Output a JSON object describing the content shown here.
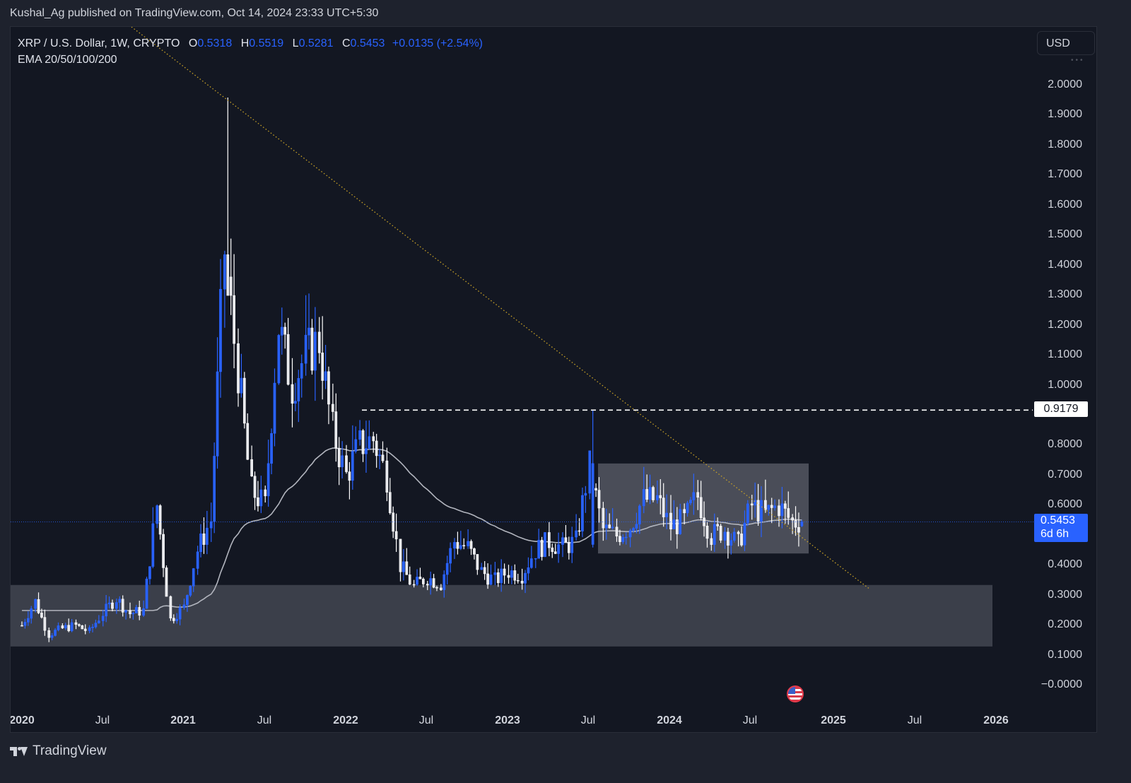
{
  "header": {
    "publisher_line": "Kushal_Ag published on TradingView.com, Oct 14, 2024 23:33 UTC+5:30"
  },
  "legend": {
    "symbol": "XRP / U.S. Dollar, 1W, CRYPTO",
    "open_label": "O",
    "open": "0.5318",
    "high_label": "H",
    "high": "0.5519",
    "low_label": "L",
    "low": "0.5281",
    "close_label": "C",
    "close": "0.5453",
    "change": "+0.0135 (+2.54%)",
    "indicator": "EMA 20/50/100/200"
  },
  "toolbar": {
    "currency": "USD"
  },
  "price_axis": {
    "ticks": [
      "2.0000",
      "1.9000",
      "1.8000",
      "1.7000",
      "1.6000",
      "1.5000",
      "1.4000",
      "1.3000",
      "1.2000",
      "1.1000",
      "1.0000",
      "0.8000",
      "0.7000",
      "0.6000",
      "0.4000",
      "0.3000",
      "0.2000",
      "0.1000",
      "−0.0000"
    ],
    "level_tag": "0.9179",
    "last_price": "0.5453",
    "countdown": "6d 6h"
  },
  "time_axis": {
    "labels": [
      {
        "text": "2020",
        "major": true
      },
      {
        "text": "Jul",
        "major": false
      },
      {
        "text": "2021",
        "major": true
      },
      {
        "text": "Jul",
        "major": false
      },
      {
        "text": "2022",
        "major": true
      },
      {
        "text": "Jul",
        "major": false
      },
      {
        "text": "2023",
        "major": true
      },
      {
        "text": "Jul",
        "major": false
      },
      {
        "text": "2024",
        "major": true
      },
      {
        "text": "Jul",
        "major": false
      },
      {
        "text": "2025",
        "major": true
      },
      {
        "text": "Jul",
        "major": false
      },
      {
        "text": "2026",
        "major": true
      }
    ]
  },
  "footer": {
    "brand": "TradingView"
  },
  "colors": {
    "background": "#131722",
    "up_candle": "#2962ff",
    "down_candle": "#ffffff",
    "ema": "#b2b5be",
    "trendline": "#c9a227",
    "zone": "#4a4d57",
    "last_price": "#2962ff"
  },
  "chart_data": {
    "type": "candlestick",
    "title": "XRP / U.S. Dollar, 1W, CRYPTO",
    "xlabel": "",
    "ylabel": "USD",
    "ylim": [
      0,
      2.05
    ],
    "x_range": [
      "2020-01",
      "2026-03"
    ],
    "grid": false,
    "legend_position": "top-left",
    "indicators": [
      "EMA 20/50/100/200"
    ],
    "annotations": [
      {
        "type": "horizontal_dashed_line",
        "price": 0.9179,
        "from": "2022-03",
        "to": "axis"
      },
      {
        "type": "rectangle",
        "label": "range box",
        "price_low": 0.44,
        "price_high": 0.74,
        "from": "2023-07",
        "to": "2024-11"
      },
      {
        "type": "rectangle",
        "label": "support zone",
        "price_low": 0.13,
        "price_high": 0.335,
        "from": "2020-01",
        "to": "2026-01"
      },
      {
        "type": "dotted_trendline",
        "from": {
          "date": "2020-11",
          "price": 2.2
        },
        "to": {
          "date": "2025-03",
          "price": 0.32
        }
      },
      {
        "type": "event_flag",
        "label": "US event",
        "date": "2024-11"
      }
    ],
    "last": {
      "open": 0.5318,
      "high": 0.5519,
      "low": 0.5281,
      "close": 0.5453,
      "change": 0.0135,
      "change_pct": 2.54
    },
    "weekly_close_approx": [
      [
        "2020-01",
        0.2
      ],
      [
        "2020-02",
        0.28
      ],
      [
        "2020-03",
        0.17
      ],
      [
        "2020-04",
        0.19
      ],
      [
        "2020-05",
        0.2
      ],
      [
        "2020-06",
        0.18
      ],
      [
        "2020-07",
        0.24
      ],
      [
        "2020-08",
        0.29
      ],
      [
        "2020-09",
        0.24
      ],
      [
        "2020-10",
        0.25
      ],
      [
        "2020-11",
        0.6
      ],
      [
        "2020-12",
        0.22
      ],
      [
        "2021-01",
        0.26
      ],
      [
        "2021-02",
        0.45
      ],
      [
        "2021-03",
        0.55
      ],
      [
        "2021-04",
        1.45
      ],
      [
        "2021-05",
        1.05
      ],
      [
        "2021-06",
        0.65
      ],
      [
        "2021-07",
        0.6
      ],
      [
        "2021-08",
        1.2
      ],
      [
        "2021-09",
        1.0
      ],
      [
        "2021-10",
        1.1
      ],
      [
        "2021-11",
        1.15
      ],
      [
        "2021-12",
        0.85
      ],
      [
        "2022-01",
        0.7
      ],
      [
        "2022-02",
        0.8
      ],
      [
        "2022-03",
        0.82
      ],
      [
        "2022-04",
        0.7
      ],
      [
        "2022-05",
        0.4
      ],
      [
        "2022-06",
        0.33
      ],
      [
        "2022-07",
        0.36
      ],
      [
        "2022-08",
        0.34
      ],
      [
        "2022-09",
        0.48
      ],
      [
        "2022-10",
        0.46
      ],
      [
        "2022-11",
        0.38
      ],
      [
        "2022-12",
        0.35
      ],
      [
        "2023-01",
        0.38
      ],
      [
        "2023-02",
        0.37
      ],
      [
        "2023-03",
        0.45
      ],
      [
        "2023-04",
        0.48
      ],
      [
        "2023-05",
        0.46
      ],
      [
        "2023-06",
        0.48
      ],
      [
        "2023-07",
        0.73
      ],
      [
        "2023-08",
        0.52
      ],
      [
        "2023-09",
        0.5
      ],
      [
        "2023-10",
        0.53
      ],
      [
        "2023-11",
        0.62
      ],
      [
        "2023-12",
        0.62
      ],
      [
        "2024-01",
        0.53
      ],
      [
        "2024-02",
        0.55
      ],
      [
        "2024-03",
        0.63
      ],
      [
        "2024-04",
        0.5
      ],
      [
        "2024-05",
        0.52
      ],
      [
        "2024-06",
        0.47
      ],
      [
        "2024-07",
        0.6
      ],
      [
        "2024-08",
        0.57
      ],
      [
        "2024-09",
        0.6
      ],
      [
        "2024-10",
        0.5453
      ]
    ]
  }
}
